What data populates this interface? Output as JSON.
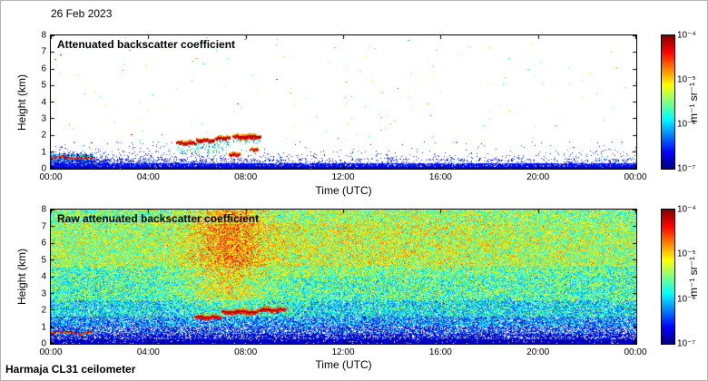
{
  "page": {
    "date_label": "26 Feb 2023",
    "instrument_label": "Harmaja CL31 ceilometer",
    "background": "#ffffff"
  },
  "colormap_stops": [
    "#00007f",
    "#0000ff",
    "#00ffff",
    "#ffff00",
    "#ff0000",
    "#7f0000"
  ],
  "render": {
    "seed": 1337
  },
  "chart_data": [
    {
      "type": "heatmap",
      "title": "Attenuated backscatter coefficient",
      "xlabel": "Time (UTC)",
      "ylabel": "Height (km)",
      "x_ticks": [
        "00:00",
        "04:00",
        "08:00",
        "12:00",
        "16:00",
        "20:00",
        "00:00"
      ],
      "x_range_hours": [
        0,
        24
      ],
      "y_ticks": [
        "0",
        "1",
        "2",
        "3",
        "4",
        "5",
        "6",
        "7",
        "8"
      ],
      "ylim_km": [
        0,
        8
      ],
      "colorbar": {
        "scale": "log",
        "colormap": "jet",
        "range_min": "1e-7",
        "range_max": "1e-4",
        "tick_labels": [
          "10⁻⁴",
          "10⁻⁵",
          "10⁻⁶",
          "10⁻⁷"
        ],
        "units": "m⁻¹ sr⁻¹"
      },
      "content": {
        "background": "white",
        "boundary_layer": {
          "surface_band_top_km": 0.3,
          "speckle_top_km": 1.0,
          "dense_until_hour": 2.0
        },
        "aerosol_stripe": {
          "t": [
            0,
            1.7
          ],
          "h": [
            0.5,
            0.8
          ]
        },
        "clouds": [
          {
            "t": [
              5.15,
              5.95
            ],
            "h": [
              1.4,
              1.65
            ],
            "virga": 0.6
          },
          {
            "t": [
              5.95,
              6.7
            ],
            "h": [
              1.55,
              1.8
            ],
            "virga": 0.9
          },
          {
            "t": [
              6.75,
              7.35
            ],
            "h": [
              1.7,
              1.95
            ],
            "virga": 0.9
          },
          {
            "t": [
              7.45,
              8.6
            ],
            "h": [
              1.75,
              2.05
            ],
            "virga": 0.3
          },
          {
            "t": [
              7.3,
              7.75
            ],
            "h": [
              0.72,
              0.95
            ],
            "virga": 0
          },
          {
            "t": [
              8.15,
              8.5
            ],
            "h": [
              1.05,
              1.22
            ],
            "virga": 0
          }
        ],
        "sparse_dots": 110
      }
    },
    {
      "type": "heatmap",
      "title": "Raw attenuated backscatter coefficient",
      "xlabel": "Time (UTC)",
      "ylabel": "Height (km)",
      "x_ticks": [
        "00:00",
        "04:00",
        "08:00",
        "12:00",
        "16:00",
        "20:00",
        "00:00"
      ],
      "x_range_hours": [
        0,
        24
      ],
      "y_ticks": [
        "0",
        "1",
        "2",
        "3",
        "4",
        "5",
        "6",
        "7",
        "8"
      ],
      "ylim_km": [
        0,
        8
      ],
      "colorbar": {
        "scale": "log",
        "colormap": "jet",
        "range_min": "1e-7",
        "range_max": "1e-4",
        "tick_labels": [
          "10⁻⁴",
          "10⁻⁵",
          "10⁻⁶",
          "10⁻⁷"
        ],
        "units": "m⁻¹ sr⁻¹"
      },
      "content": {
        "background": "full-field-noise",
        "warm_column_hours": [
          5.5,
          9.5
        ],
        "aerosol_stripe": {
          "t": [
            0,
            1.7
          ],
          "h": [
            0.5,
            0.8
          ]
        },
        "clouds": [
          {
            "t": [
              5.9,
              7.0
            ],
            "h": [
              1.45,
              1.7
            ]
          },
          {
            "t": [
              7.0,
              8.5
            ],
            "h": [
              1.75,
              2.05
            ]
          },
          {
            "t": [
              8.5,
              9.6
            ],
            "h": [
              1.9,
              2.15
            ]
          }
        ]
      }
    }
  ]
}
